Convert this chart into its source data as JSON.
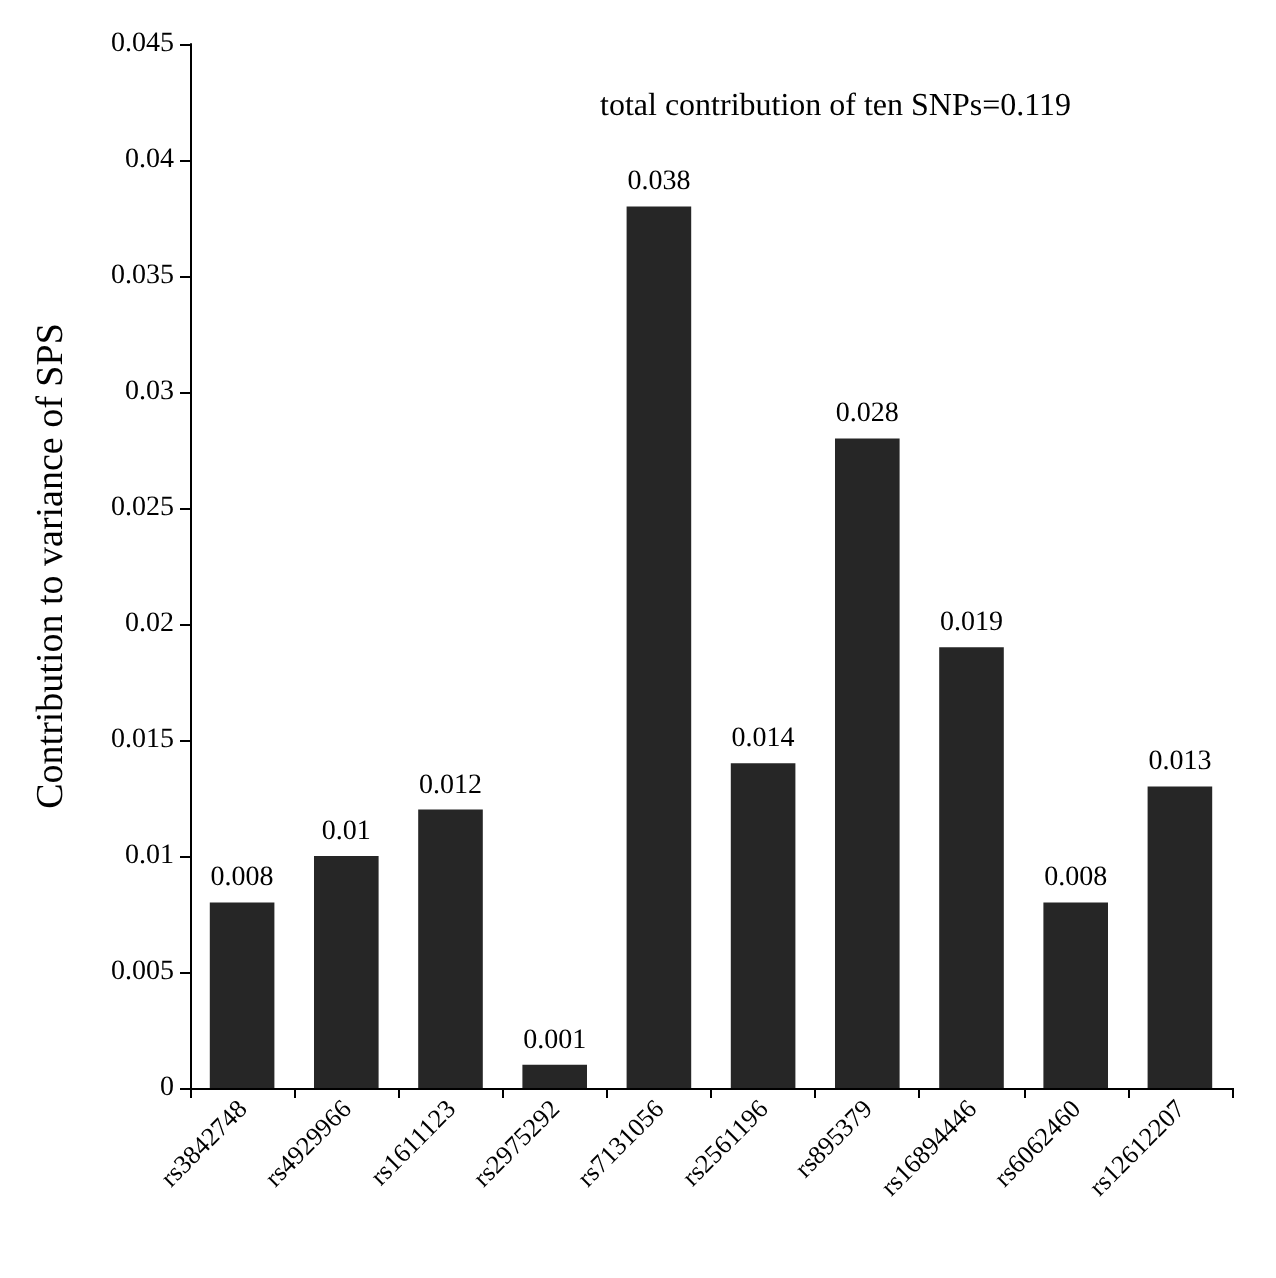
{
  "chart_data": {
    "type": "bar",
    "ylabel": "Contribution to variance of SPS",
    "annotations": [
      "total contribution of ten SNPs=0.119"
    ],
    "categories": [
      "rs3842748",
      "rs4929966",
      "rs1611123",
      "rs2975292",
      "rs7131056",
      "rs2561196",
      "rs895379",
      "rs16894446",
      "rs6062460",
      "rs12612207"
    ],
    "values": [
      0.008,
      0.01,
      0.012,
      0.001,
      0.038,
      0.014,
      0.028,
      0.019,
      0.008,
      0.013
    ],
    "color": "#262626",
    "ylim": [
      0,
      0.045
    ],
    "yticks": [
      0,
      0.005,
      0.01,
      0.015,
      0.02,
      0.025,
      0.03,
      0.035,
      0.04,
      0.045
    ],
    "data_labels": true,
    "grid": false
  }
}
